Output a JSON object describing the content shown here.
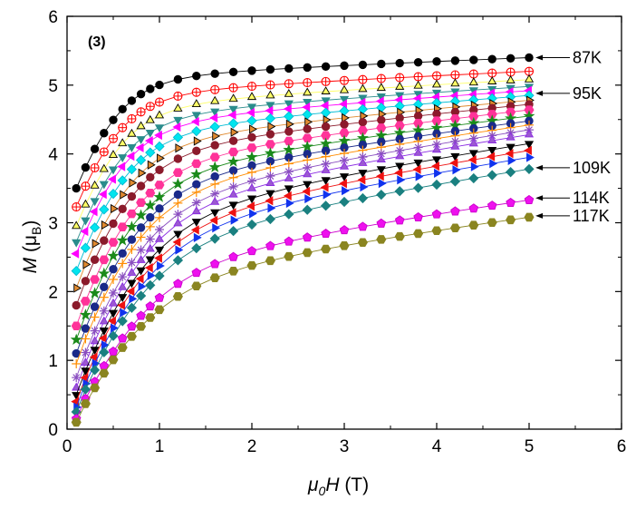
{
  "chart_data": {
    "type": "scatter",
    "panel_label": "(3)",
    "xlabel": {
      "prefix": "μ",
      "prefix_sub": "0",
      "main": "H",
      "unit": " (T)"
    },
    "ylabel": {
      "main": "M",
      "unit_open": " (μ",
      "unit_sub": "B",
      "unit_close": ")"
    },
    "xlim": [
      0,
      6
    ],
    "ylim": [
      0,
      6
    ],
    "xticks": [
      "0",
      "1",
      "2",
      "3",
      "4",
      "5",
      "6"
    ],
    "yticks": [
      "0",
      "1",
      "2",
      "3",
      "4",
      "5",
      "6"
    ],
    "x": [
      0.1,
      0.2,
      0.3,
      0.4,
      0.5,
      0.6,
      0.7,
      0.8,
      0.9,
      1.0,
      1.2,
      1.4,
      1.6,
      1.8,
      2.0,
      2.2,
      2.4,
      2.6,
      2.8,
      3.0,
      3.2,
      3.4,
      3.6,
      3.8,
      4.0,
      4.2,
      4.4,
      4.6,
      4.8,
      5.0
    ],
    "series_params": [
      {
        "marker": "circle",
        "color": "#000000",
        "fill": "#000000",
        "a": 3.5,
        "m5": 5.4
      },
      {
        "marker": "circle-cross",
        "color": "#ff0000",
        "fill": "none",
        "a": 3.23,
        "m5": 5.2
      },
      {
        "marker": "triangle-up",
        "color": "#000000",
        "fill": "#ffff66",
        "a": 2.95,
        "m5": 5.08
      },
      {
        "marker": "triangle-down",
        "color": "#2a8c8c",
        "fill": "#2a8c8c",
        "a": 2.72,
        "m5": 4.98
      },
      {
        "marker": "triangle-left",
        "color": "#ff00ff",
        "fill": "#ff00ff",
        "a": 2.55,
        "m5": 4.92
      },
      {
        "marker": "diamond",
        "color": "#00bcd4",
        "fill": "#00e5ee",
        "a": 2.3,
        "m5": 4.85
      },
      {
        "marker": "triangle-right",
        "color": "#000000",
        "fill": "#e08a30",
        "a": 2.05,
        "m5": 4.78
      },
      {
        "marker": "circle",
        "color": "#8b1a2b",
        "fill": "#8b1a2b",
        "a": 1.8,
        "m5": 4.72
      },
      {
        "marker": "hexagon",
        "color": "#ff3399",
        "fill": "#ff3399",
        "a": 1.5,
        "m5": 4.64
      },
      {
        "marker": "star",
        "color": "#1a8a1a",
        "fill": "#1a8a1a",
        "a": 1.3,
        "m5": 4.55
      },
      {
        "marker": "circle",
        "color": "#1a2a8a",
        "fill": "#1a2a8a",
        "a": 1.1,
        "m5": 4.48
      },
      {
        "marker": "plus",
        "color": "#ff8c00",
        "fill": "none",
        "a": 0.95,
        "m5": 4.42
      },
      {
        "marker": "asterisk",
        "color": "#8a4ec0",
        "fill": "none",
        "a": 0.75,
        "m5": 4.35
      },
      {
        "marker": "triangle-up",
        "color": "#8a2be2",
        "fill": "#9b59d0",
        "a": 0.6,
        "m5": 4.28
      },
      {
        "marker": "triangle-down",
        "color": "#000000",
        "fill": "#000000",
        "a": 0.5,
        "m5": 4.15
      },
      {
        "marker": "triangle-left",
        "color": "#ee1111",
        "fill": "#ee1111",
        "a": 0.4,
        "m5": 4.05
      },
      {
        "marker": "triangle-right",
        "color": "#1133ee",
        "fill": "#1133ee",
        "a": 0.32,
        "m5": 3.95
      },
      {
        "marker": "diamond",
        "color": "#1a8080",
        "fill": "#1a8080",
        "a": 0.25,
        "m5": 3.78
      },
      {
        "marker": "pentagon",
        "color": "#cc00cc",
        "fill": "#ee11ee",
        "a": 0.15,
        "m5": 3.33
      },
      {
        "marker": "hexagon",
        "color": "#8a8520",
        "fill": "#8a8520",
        "a": 0.1,
        "m5": 3.08
      }
    ],
    "annotations": [
      {
        "text": "87K",
        "y": 5.4
      },
      {
        "text": "95K",
        "y": 4.88
      },
      {
        "text": "109K",
        "y": 3.8
      },
      {
        "text": "114K",
        "y": 3.36
      },
      {
        "text": "117K",
        "y": 3.1
      }
    ]
  }
}
